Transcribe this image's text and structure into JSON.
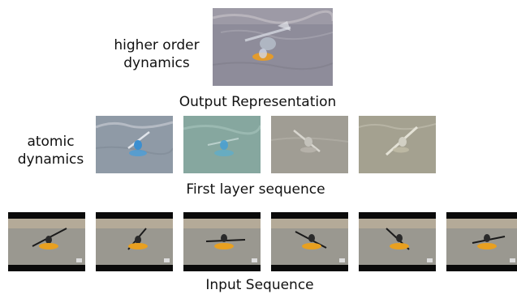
{
  "labels": {
    "higher_order_line1": "higher order",
    "higher_order_line2": "dynamics",
    "output_caption": "Output Representation",
    "atomic_line1": "atomic",
    "atomic_line2": "dynamics",
    "first_layer_caption": "First layer sequence",
    "input_caption": "Input Sequence"
  },
  "first_layer_tints": [
    "#8f9aa6",
    "#86a79f",
    "#a09d94",
    "#a4a190"
  ],
  "input_frames_count_shown": 6,
  "colors": {
    "water_input": "#9a9890",
    "letterbox": "#0a0a0a",
    "kayak": "#e8a020",
    "output_bg": "#8e8c9a"
  }
}
